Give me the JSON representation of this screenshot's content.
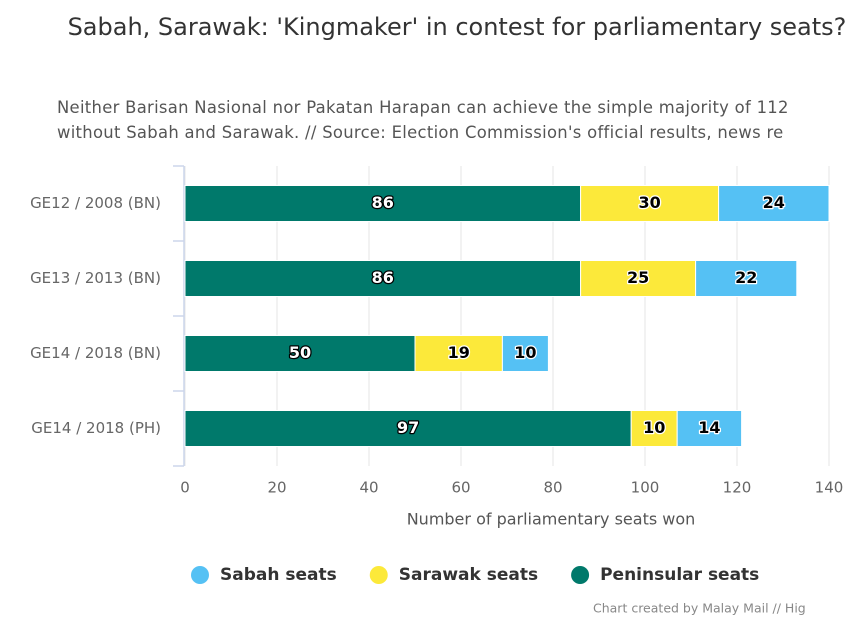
{
  "chart_data": {
    "type": "stacked-bar",
    "title": "Sabah, Sarawak: 'Kingmaker' in contest for parliamentary seats?",
    "subtitle": "Neither Barisan Nasional nor Pakatan Harapan can achieve the simple majority of 112 without Sabah and Sarawak. // Source: Election Commission's official results, news re",
    "credits": "Chart created by Malay Mail // Hig",
    "x_axis_title": "Number of parliamentary seats won",
    "categories": [
      "GE12 / 2008 (BN)",
      "GE13 / 2013 (BN)",
      "GE14 / 2018 (BN)",
      "GE14 / 2018 (PH)"
    ],
    "series": [
      {
        "name": "Sabah seats",
        "color": "#55c1f4",
        "values": [
          24,
          22,
          10,
          14
        ]
      },
      {
        "name": "Sarawak seats",
        "color": "#fce93a",
        "values": [
          30,
          25,
          19,
          10
        ]
      },
      {
        "name": "Peninsular seats",
        "color": "#00796b",
        "values": [
          86,
          86,
          50,
          97
        ]
      }
    ],
    "xlim": [
      0,
      140
    ],
    "xticks": [
      0,
      20,
      40,
      60,
      80,
      100,
      120,
      140
    ],
    "grid": true
  }
}
